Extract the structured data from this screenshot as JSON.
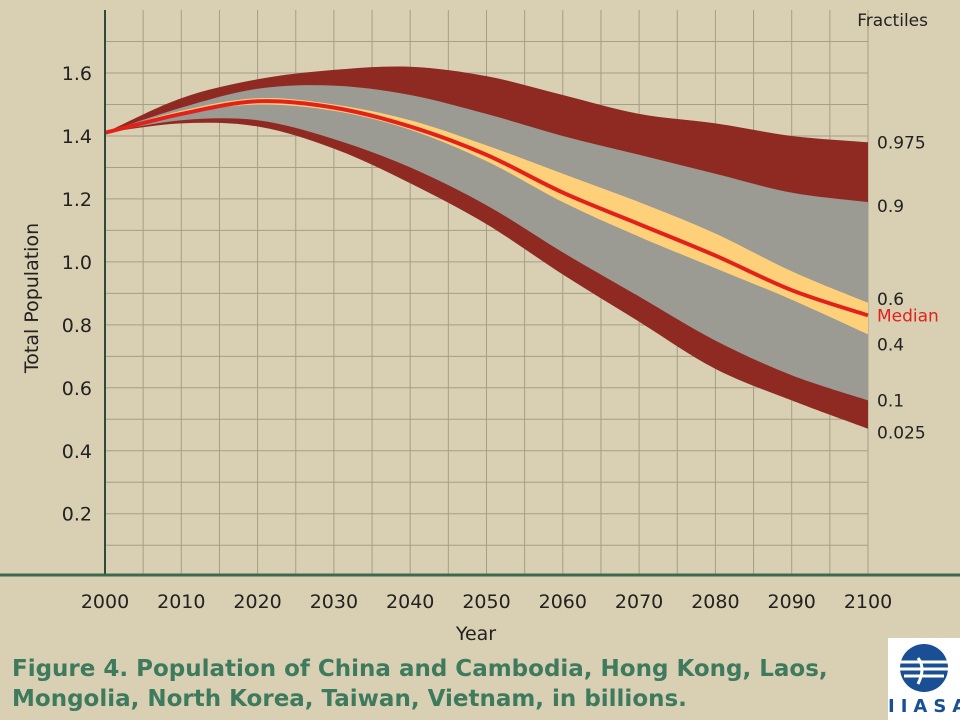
{
  "chart_data": {
    "type": "area",
    "title": "",
    "xlabel": "Year",
    "ylabel": "Total Population",
    "xlim": [
      2000,
      2100
    ],
    "ylim": [
      0.0,
      1.75
    ],
    "x_ticks": [
      2000,
      2010,
      2020,
      2030,
      2040,
      2050,
      2060,
      2070,
      2080,
      2090,
      2100
    ],
    "y_ticks": [
      0.2,
      0.4,
      0.6,
      0.8,
      1.0,
      1.2,
      1.4,
      1.6
    ],
    "y_tick_labels": [
      "0.2",
      "0.4",
      "0.6",
      "0.8",
      "1.0",
      "1.2",
      "1.4",
      "1.6"
    ],
    "grid": true,
    "legend_title": "Fractiles",
    "x": [
      2000,
      2010,
      2020,
      2030,
      2040,
      2050,
      2060,
      2070,
      2080,
      2090,
      2100
    ],
    "series": [
      {
        "name": "0.975",
        "values": [
          1.41,
          1.52,
          1.58,
          1.61,
          1.62,
          1.59,
          1.53,
          1.47,
          1.44,
          1.4,
          1.38
        ]
      },
      {
        "name": "0.9",
        "values": [
          1.41,
          1.49,
          1.55,
          1.56,
          1.53,
          1.47,
          1.4,
          1.34,
          1.28,
          1.22,
          1.19
        ]
      },
      {
        "name": "0.6",
        "values": [
          1.41,
          1.48,
          1.52,
          1.5,
          1.45,
          1.37,
          1.28,
          1.19,
          1.09,
          0.97,
          0.87
        ]
      },
      {
        "name": "Median",
        "values": [
          1.41,
          1.47,
          1.51,
          1.49,
          1.43,
          1.34,
          1.22,
          1.12,
          1.02,
          0.91,
          0.83
        ]
      },
      {
        "name": "0.4",
        "values": [
          1.41,
          1.47,
          1.5,
          1.48,
          1.42,
          1.32,
          1.19,
          1.08,
          0.98,
          0.88,
          0.77
        ]
      },
      {
        "name": "0.1",
        "values": [
          1.41,
          1.45,
          1.45,
          1.39,
          1.3,
          1.18,
          1.03,
          0.89,
          0.75,
          0.64,
          0.56
        ]
      },
      {
        "name": "0.025",
        "values": [
          1.41,
          1.44,
          1.43,
          1.36,
          1.25,
          1.12,
          0.96,
          0.81,
          0.66,
          0.56,
          0.47
        ]
      }
    ],
    "colors": {
      "outer_band": "#8e2a22",
      "inner_band": "#9b9a93",
      "central_band": "#ffd07a",
      "median_line": "#e2221a",
      "median_label": "#e2221a",
      "background": "#d9cfb2",
      "grid": "#a59e88"
    }
  },
  "caption": "Figure 4. Population of China and Cambodia, Hong Kong, Laos, Mongolia, North Korea, Taiwan, Vietnam, in billions.",
  "logo": {
    "text": "IIASA"
  }
}
